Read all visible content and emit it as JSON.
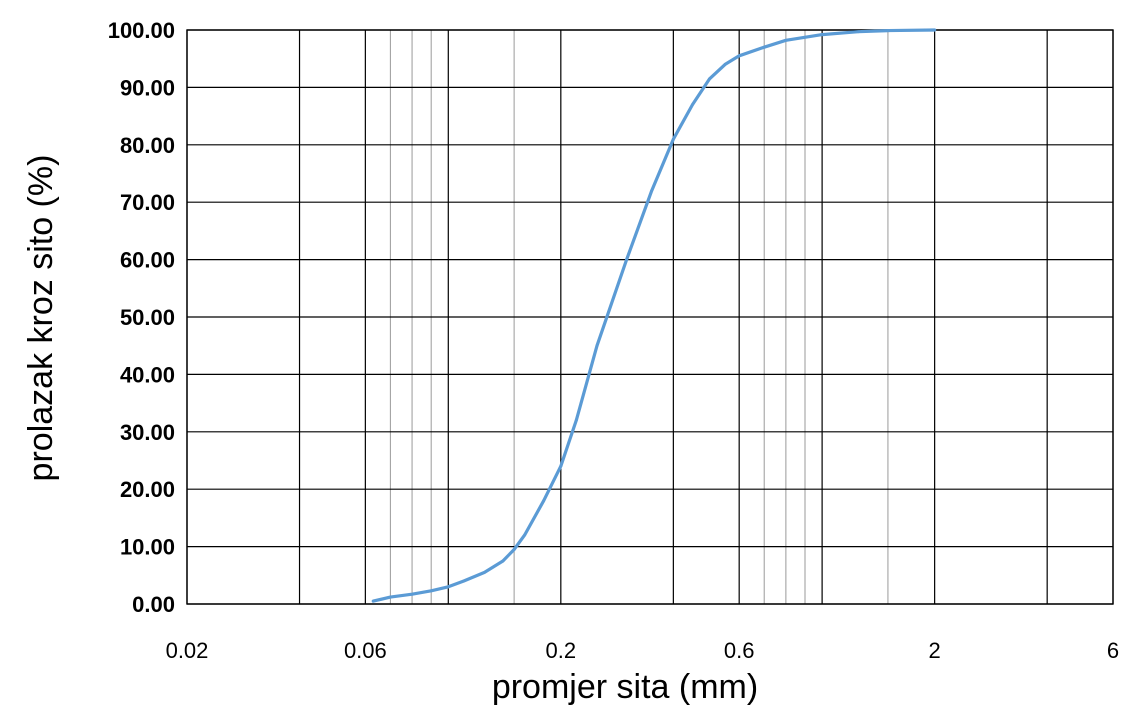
{
  "chart_data": {
    "type": "line",
    "title": "",
    "xlabel": "promjer sita (mm)",
    "ylabel": "prolazak kroz sito (%)",
    "x_scale": "log",
    "xlim": [
      0.02,
      6
    ],
    "ylim": [
      0,
      100
    ],
    "x_tick_labels": [
      "0.02",
      "0.06",
      "0.2",
      "0.6",
      "2",
      "6"
    ],
    "x_ticks": [
      0.02,
      0.06,
      0.2,
      0.6,
      2,
      6
    ],
    "y_tick_labels": [
      "0.00",
      "10.00",
      "20.00",
      "30.00",
      "40.00",
      "50.00",
      "60.00",
      "70.00",
      "80.00",
      "90.00",
      "100.00"
    ],
    "y_ticks": [
      0,
      10,
      20,
      30,
      40,
      50,
      60,
      70,
      80,
      90,
      100
    ],
    "grid": true,
    "grid_major_x": [
      0.02,
      0.04,
      0.06,
      0.1,
      0.2,
      0.4,
      0.6,
      1,
      2,
      4,
      6
    ],
    "grid_minor_x": [
      0.07,
      0.08,
      0.09,
      0.15,
      0.7,
      0.8,
      0.9,
      1.5
    ],
    "series": [
      {
        "color": "#5b9bd5",
        "x": [
          0.063,
          0.07,
          0.08,
          0.09,
          0.1,
          0.11,
          0.125,
          0.14,
          0.15,
          0.16,
          0.18,
          0.2,
          0.22,
          0.25,
          0.3,
          0.35,
          0.4,
          0.45,
          0.5,
          0.55,
          0.6,
          0.7,
          0.8,
          1.0,
          1.25,
          1.5,
          2.0
        ],
        "y": [
          0.5,
          1.2,
          1.7,
          2.3,
          3.0,
          4.0,
          5.5,
          7.5,
          9.5,
          12.0,
          18.0,
          24.0,
          32.0,
          45.0,
          60.0,
          72.0,
          81.0,
          87.0,
          91.5,
          94.0,
          95.5,
          97.0,
          98.2,
          99.2,
          99.7,
          99.9,
          100.0
        ]
      }
    ]
  }
}
